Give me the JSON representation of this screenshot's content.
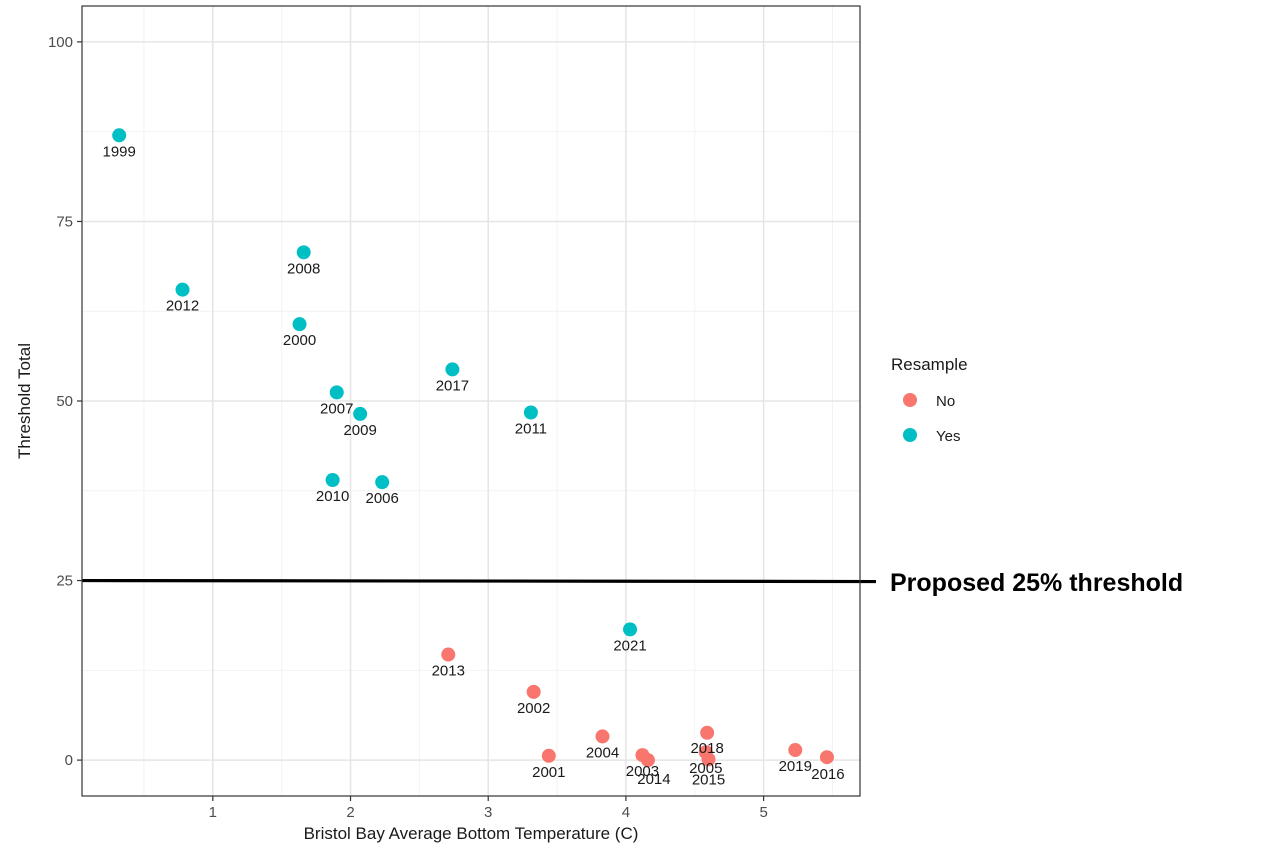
{
  "chart_data": {
    "type": "scatter",
    "title": "",
    "xlabel": "Bristol Bay Average Bottom Temperature (C)",
    "ylabel": "Threshold Total",
    "xlim": [
      0.05,
      5.7
    ],
    "ylim": [
      -5,
      105
    ],
    "xticks": [
      1,
      2,
      3,
      4,
      5
    ],
    "yticks": [
      0,
      25,
      50,
      75,
      100
    ],
    "grid": true,
    "legend": {
      "title": "Resample",
      "placement": "right",
      "entries": [
        {
          "label": "No",
          "color": "#F8766D"
        },
        {
          "label": "Yes",
          "color": "#00BFC4"
        }
      ]
    },
    "threshold_line": {
      "y": 25,
      "color": "#000000"
    },
    "annotation": "Proposed 25% threshold",
    "series": [
      {
        "name": "No",
        "color": "#F8766D",
        "points": [
          {
            "label": "2013",
            "x": 2.71,
            "y": 14.7
          },
          {
            "label": "2002",
            "x": 3.33,
            "y": 9.5
          },
          {
            "label": "2001",
            "x": 3.44,
            "y": 0.6
          },
          {
            "label": "2004",
            "x": 3.83,
            "y": 3.3
          },
          {
            "label": "2003",
            "x": 4.12,
            "y": 0.7
          },
          {
            "label": "2014",
            "x": 4.16,
            "y": 0.0
          },
          {
            "label": "2018",
            "x": 4.59,
            "y": 3.8
          },
          {
            "label": "2005",
            "x": 4.58,
            "y": 1.1
          },
          {
            "label": "2015",
            "x": 4.6,
            "y": 0.1
          },
          {
            "label": "2019",
            "x": 5.23,
            "y": 1.4
          },
          {
            "label": "2016",
            "x": 5.46,
            "y": 0.4
          }
        ]
      },
      {
        "name": "Yes",
        "color": "#00BFC4",
        "points": [
          {
            "label": "1999",
            "x": 0.32,
            "y": 87.0
          },
          {
            "label": "2012",
            "x": 0.78,
            "y": 65.5
          },
          {
            "label": "2008",
            "x": 1.66,
            "y": 70.7
          },
          {
            "label": "2000",
            "x": 1.63,
            "y": 60.7
          },
          {
            "label": "2007",
            "x": 1.9,
            "y": 51.2
          },
          {
            "label": "2009",
            "x": 2.07,
            "y": 48.2
          },
          {
            "label": "2010",
            "x": 1.87,
            "y": 39.0
          },
          {
            "label": "2006",
            "x": 2.23,
            "y": 38.7
          },
          {
            "label": "2017",
            "x": 2.74,
            "y": 54.4
          },
          {
            "label": "2011",
            "x": 3.31,
            "y": 48.4
          },
          {
            "label": "2021",
            "x": 4.03,
            "y": 18.2
          }
        ]
      }
    ]
  }
}
